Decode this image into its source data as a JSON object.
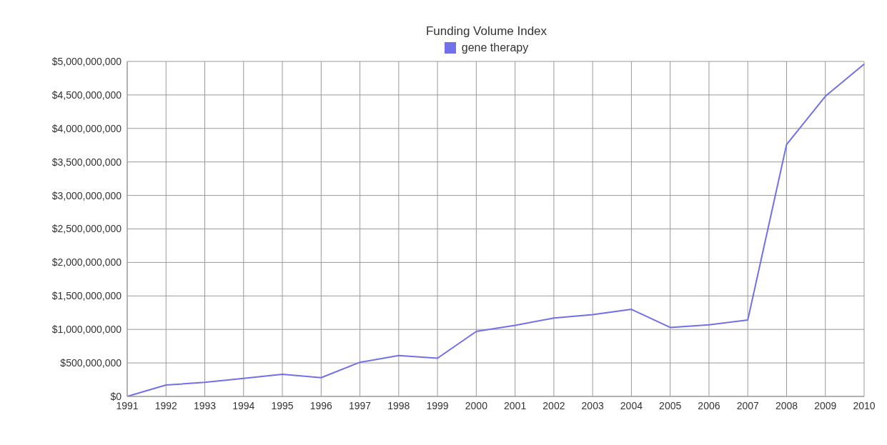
{
  "chart_data": {
    "type": "line",
    "title": "Funding Volume Index",
    "categories": [
      "1991",
      "1992",
      "1993",
      "1994",
      "1995",
      "1996",
      "1997",
      "1998",
      "1999",
      "2000",
      "2001",
      "2002",
      "2003",
      "2004",
      "2005",
      "2006",
      "2007",
      "2008",
      "2009",
      "2010"
    ],
    "series": [
      {
        "name": "gene therapy",
        "color": "#7070e8",
        "values": [
          0,
          170000000,
          210000000,
          270000000,
          330000000,
          280000000,
          510000000,
          610000000,
          570000000,
          970000000,
          1060000000,
          1170000000,
          1220000000,
          1300000000,
          1030000000,
          1070000000,
          1140000000,
          3760000000,
          4480000000,
          4960000000
        ]
      }
    ],
    "ylim": [
      0,
      5000000000
    ],
    "yticks": [
      {
        "value": 0,
        "label": "$0"
      },
      {
        "value": 500000000,
        "label": "$500,000,000"
      },
      {
        "value": 1000000000,
        "label": "$1,000,000,000"
      },
      {
        "value": 1500000000,
        "label": "$1,500,000,000"
      },
      {
        "value": 2000000000,
        "label": "$2,000,000,000"
      },
      {
        "value": 2500000000,
        "label": "$2,500,000,000"
      },
      {
        "value": 3000000000,
        "label": "$3,000,000,000"
      },
      {
        "value": 3500000000,
        "label": "$3,500,000,000"
      },
      {
        "value": 4000000000,
        "label": "$4,000,000,000"
      },
      {
        "value": 4500000000,
        "label": "$4,500,000,000"
      },
      {
        "value": 5000000000,
        "label": "$5,000,000,000"
      }
    ],
    "grid": true,
    "legend": "top",
    "marker": "none",
    "line_style": "solid"
  }
}
